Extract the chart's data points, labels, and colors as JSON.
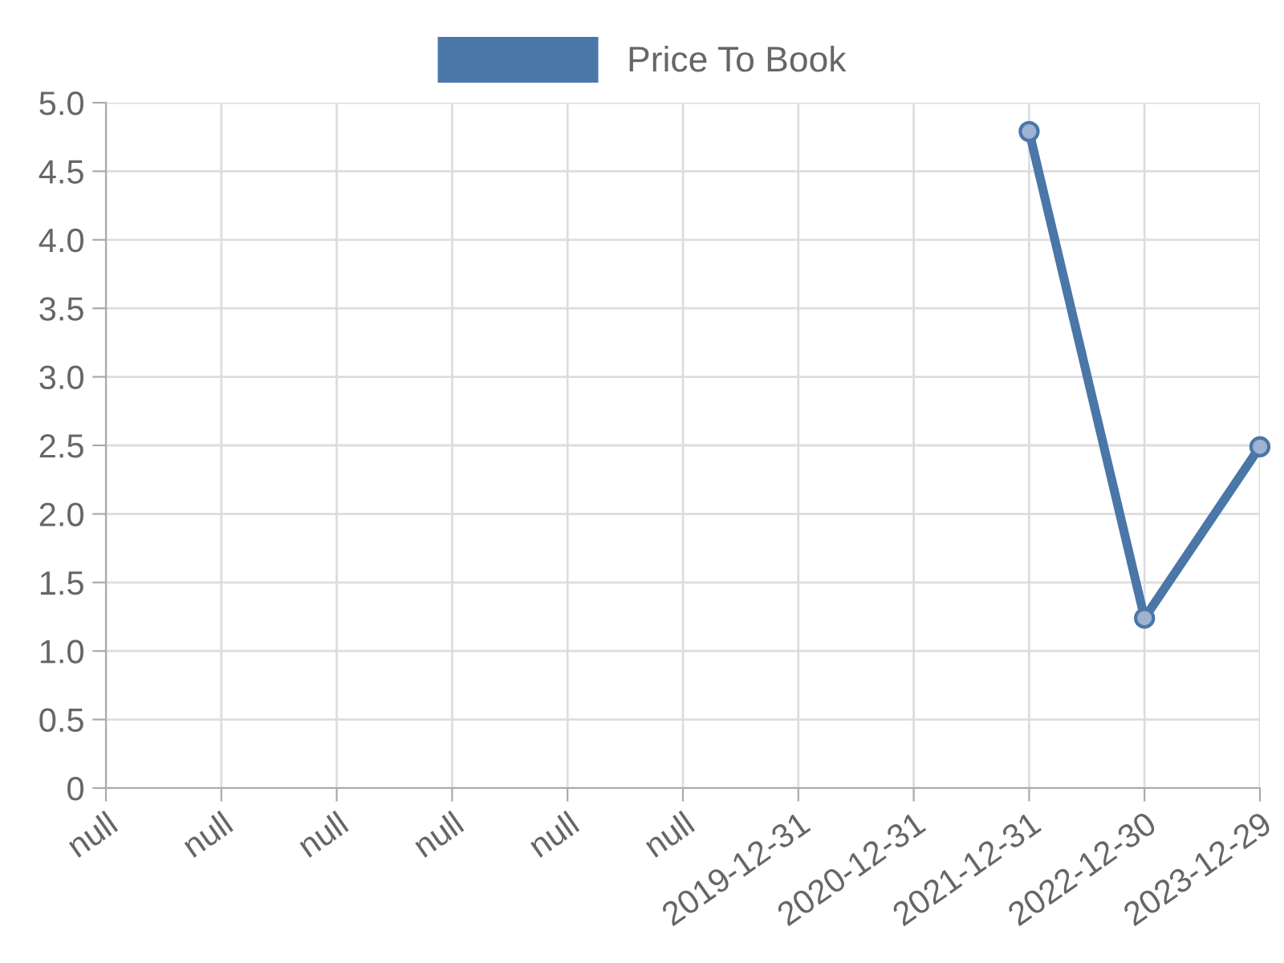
{
  "chart_data": {
    "type": "line",
    "categories": [
      "null",
      "null",
      "null",
      "null",
      "null",
      "null",
      "2019-12-31",
      "2020-12-31",
      "2021-12-31",
      "2022-12-30",
      "2023-12-29"
    ],
    "series": [
      {
        "name": "Price To Book",
        "color": "#4a76a8",
        "values": [
          null,
          null,
          null,
          null,
          null,
          null,
          null,
          null,
          4.79,
          1.24,
          2.49
        ]
      }
    ],
    "ylim": [
      0,
      5
    ],
    "yticks": [
      0,
      0.5,
      {
        "value": 1,
        "label": "1.0"
      },
      1.5,
      {
        "value": 2,
        "label": "2.0"
      },
      2.5,
      {
        "value": 3,
        "label": "3.0"
      },
      3.5,
      {
        "value": 4,
        "label": "4.0"
      },
      4.5,
      {
        "value": 5,
        "label": "5.0"
      }
    ],
    "grid": true,
    "legend": "top",
    "marker": "circle",
    "line_style": "solid"
  }
}
